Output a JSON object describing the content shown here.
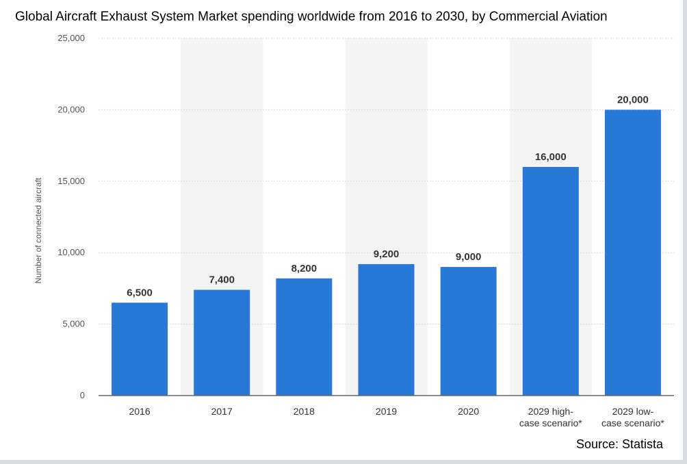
{
  "title": "Global Aircraft Exhaust System Market spending worldwide from 2016 to 2030, by Commercial Aviation",
  "source": "Source: Statista",
  "chart_data": {
    "type": "bar",
    "title": "Global Aircraft Exhaust System Market spending worldwide from 2016 to 2030, by Commercial Aviation",
    "xlabel": "",
    "ylabel": "Number of connected aircraft",
    "categories": [
      [
        "2016"
      ],
      [
        "2017"
      ],
      [
        "2018"
      ],
      [
        "2019"
      ],
      [
        "2020"
      ],
      [
        "2029 high-",
        "case scenario*"
      ],
      [
        "2029 low-",
        "case scenario*"
      ]
    ],
    "values": [
      6500,
      7400,
      8200,
      9200,
      9000,
      16000,
      20000
    ],
    "data_labels": [
      "6,500",
      "7,400",
      "8,200",
      "9,200",
      "9,000",
      "16,000",
      "20,000"
    ],
    "ylim": [
      0,
      25000
    ],
    "yticks": [
      0,
      5000,
      10000,
      15000,
      20000,
      25000
    ],
    "ytick_labels": [
      "0",
      "5,000",
      "10,000",
      "15,000",
      "20,000",
      "25,000"
    ],
    "grid": true,
    "legend": "none",
    "colors": {
      "bar": "#2878d8",
      "band": "#f4f4f4",
      "grid": "#d8d8d8",
      "axis": "#666666"
    }
  }
}
